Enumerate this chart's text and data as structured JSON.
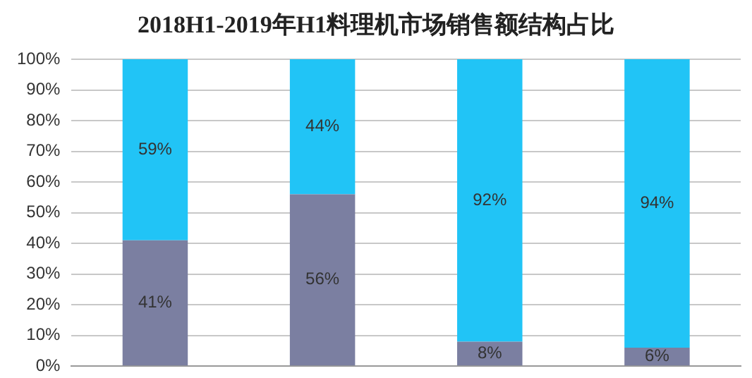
{
  "chart_data": {
    "type": "bar",
    "title": "2018H1-2019年H1料理机市场销售额结构占比",
    "categories": [
      null,
      null,
      null,
      null
    ],
    "stacked": true,
    "series": [
      {
        "color": "#7b7fa1",
        "values": [
          41,
          56,
          8,
          6
        ],
        "value_labels": [
          "41%",
          "56%",
          "8%",
          "6%"
        ]
      },
      {
        "color": "#21c4f6",
        "values": [
          59,
          44,
          92,
          94
        ],
        "value_labels": [
          "59%",
          "44%",
          "92%",
          "94%"
        ]
      }
    ],
    "ylim": [
      0,
      100
    ],
    "yticks": [
      {
        "value": 0,
        "label": "0%"
      },
      {
        "value": 10,
        "label": "10%"
      },
      {
        "value": 20,
        "label": "20%"
      },
      {
        "value": 30,
        "label": "30%"
      },
      {
        "value": 40,
        "label": "40%"
      },
      {
        "value": 50,
        "label": "50%"
      },
      {
        "value": 60,
        "label": "60%"
      },
      {
        "value": 70,
        "label": "70%"
      },
      {
        "value": 80,
        "label": "80%"
      },
      {
        "value": 90,
        "label": "90%"
      },
      {
        "value": 100,
        "label": "100%"
      }
    ],
    "grid": "y",
    "legend": false
  }
}
